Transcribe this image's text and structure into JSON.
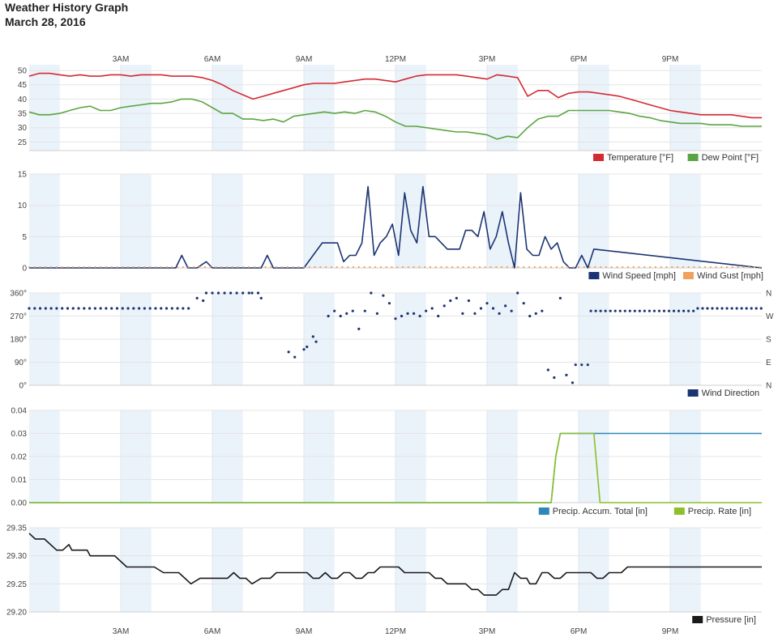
{
  "header": {
    "title": "Weather History Graph",
    "date": "March 28, 2016"
  },
  "colors": {
    "temperature": "#d42a33",
    "dew_point": "#5aa542",
    "wind_speed": "#1b3472",
    "wind_gust": "#f0a15e",
    "wind_direction": "#1b3472",
    "precip_total": "#2e87b9",
    "precip_rate": "#8cc12b",
    "pressure": "#1a1a1a",
    "band": "#eaf2fa"
  },
  "chart_data": [
    {
      "type": "line",
      "x_ticks": [
        "3AM",
        "6AM",
        "9AM",
        "12PM",
        "3PM",
        "6PM",
        "9PM"
      ],
      "x_tick_hours": [
        3,
        6,
        9,
        12,
        15,
        18,
        21
      ],
      "xlim_hours": [
        0,
        24
      ],
      "ylim": [
        22,
        52
      ],
      "y_ticks": [
        "50",
        "45",
        "40",
        "35",
        "30",
        "25"
      ],
      "y_tick_values": [
        50,
        45,
        40,
        35,
        30,
        25
      ],
      "legend": [
        "Temperature [°F]",
        "Dew Point [°F]"
      ],
      "series": [
        {
          "name": "Temperature [°F]",
          "x": [
            0,
            0.33,
            0.67,
            1,
            1.33,
            1.67,
            2,
            2.33,
            2.67,
            3,
            3.33,
            3.67,
            4,
            4.33,
            4.67,
            5,
            5.33,
            5.67,
            6,
            6.33,
            6.67,
            7,
            7.33,
            7.67,
            8,
            8.33,
            8.67,
            9,
            9.33,
            9.67,
            10,
            10.33,
            10.67,
            11,
            11.33,
            11.67,
            12,
            12.33,
            12.67,
            13,
            13.33,
            13.67,
            14,
            14.33,
            14.67,
            15,
            15.33,
            15.67,
            16,
            16.33,
            16.67,
            17,
            17.33,
            17.67,
            18,
            18.33,
            18.67,
            19,
            19.33,
            19.67,
            20,
            20.33,
            20.67,
            21,
            21.33,
            21.67,
            22,
            22.33,
            22.67,
            23,
            23.33,
            23.67,
            24
          ],
          "values": [
            48,
            49,
            49,
            48.5,
            48,
            48.5,
            48,
            48,
            48.5,
            48.5,
            48,
            48.5,
            48.5,
            48.5,
            48,
            48,
            48,
            47.5,
            46.5,
            45,
            43,
            41.5,
            40,
            41,
            42,
            43,
            44,
            45,
            45.5,
            45.5,
            45.5,
            46,
            46.5,
            47,
            47,
            46.5,
            46,
            47,
            48,
            48.5,
            48.5,
            48.5,
            48.5,
            48,
            47.5,
            47,
            48.5,
            48,
            47.5,
            41,
            43,
            43,
            40.5,
            42,
            42.5,
            42.5,
            42,
            41.5,
            41,
            40,
            39,
            38,
            37,
            36,
            35.5,
            35,
            34.5,
            34.5,
            34.5,
            34.5,
            34,
            33.5,
            33.5
          ]
        },
        {
          "name": "Dew Point [°F]",
          "x": [
            0,
            0.33,
            0.67,
            1,
            1.33,
            1.67,
            2,
            2.33,
            2.67,
            3,
            3.33,
            3.67,
            4,
            4.33,
            4.67,
            5,
            5.33,
            5.67,
            6,
            6.33,
            6.67,
            7,
            7.33,
            7.67,
            8,
            8.33,
            8.67,
            9,
            9.33,
            9.67,
            10,
            10.33,
            10.67,
            11,
            11.33,
            11.67,
            12,
            12.33,
            12.67,
            13,
            13.33,
            13.67,
            14,
            14.33,
            14.67,
            15,
            15.33,
            15.67,
            16,
            16.33,
            16.67,
            17,
            17.33,
            17.67,
            18,
            18.33,
            18.67,
            19,
            19.33,
            19.67,
            20,
            20.33,
            20.67,
            21,
            21.33,
            21.67,
            22,
            22.33,
            22.67,
            23,
            23.33,
            23.67,
            24
          ],
          "values": [
            35.5,
            34.5,
            34.5,
            35,
            36,
            37,
            37.5,
            36,
            36,
            37,
            37.5,
            38,
            38.5,
            38.5,
            39,
            40,
            40,
            39,
            37,
            35,
            35,
            33,
            33,
            32.5,
            33,
            32,
            34,
            34.5,
            35,
            35.5,
            35,
            35.5,
            35,
            36,
            35.5,
            34,
            32,
            30.5,
            30.5,
            30,
            29.5,
            29,
            28.5,
            28.5,
            28,
            27.5,
            26,
            27,
            26.5,
            30,
            33,
            34,
            34,
            36,
            36,
            36,
            36,
            36,
            35.5,
            35,
            34,
            33.5,
            32.5,
            32,
            31.5,
            31.5,
            31.5,
            31,
            31,
            31,
            30.5,
            30.5,
            30.5
          ]
        }
      ]
    },
    {
      "type": "line",
      "x_ticks": [],
      "xlim_hours": [
        0,
        24
      ],
      "ylim": [
        0,
        15
      ],
      "y_ticks": [
        "15",
        "10",
        "5",
        "0"
      ],
      "y_tick_values": [
        15,
        10,
        5,
        0
      ],
      "legend": [
        "Wind Speed [mph]",
        "Wind Gust [mph]"
      ],
      "series": [
        {
          "name": "Wind Speed [mph]",
          "x": [
            0,
            4.8,
            5,
            5.2,
            5.5,
            5.8,
            6,
            6.2,
            6.5,
            7.3,
            7.6,
            7.8,
            8,
            8.3,
            8.6,
            9,
            9.3,
            9.6,
            9.9,
            10.1,
            10.3,
            10.5,
            10.7,
            10.9,
            11.1,
            11.3,
            11.5,
            11.7,
            11.9,
            12.1,
            12.3,
            12.5,
            12.7,
            12.9,
            13.1,
            13.3,
            13.5,
            13.7,
            13.9,
            14.1,
            14.3,
            14.5,
            14.7,
            14.9,
            15.1,
            15.3,
            15.5,
            15.7,
            15.9,
            16.1,
            16.3,
            16.5,
            16.7,
            16.9,
            17.1,
            17.3,
            17.5,
            17.7,
            17.9,
            18.1,
            18.3,
            18.5,
            24
          ],
          "values": [
            0,
            0,
            2,
            0,
            0,
            1,
            0,
            0,
            0,
            0,
            0,
            2,
            0,
            0,
            0,
            0,
            2,
            4,
            4,
            4,
            1,
            2,
            2,
            4,
            13,
            2,
            4,
            5,
            7,
            2,
            12,
            6,
            4,
            13,
            5,
            5,
            4,
            3,
            3,
            3,
            6,
            6,
            5,
            9,
            3,
            5,
            9,
            4,
            0,
            12,
            3,
            2,
            2,
            5,
            3,
            4,
            1,
            0,
            0,
            2,
            0,
            3,
            0
          ]
        },
        {
          "name": "Wind Gust [mph]",
          "x": [],
          "values": []
        }
      ]
    },
    {
      "type": "scatter",
      "x_ticks": [],
      "xlim_hours": [
        0,
        24
      ],
      "ylim": [
        0,
        360
      ],
      "y_ticks": [
        "360°",
        "270°",
        "180°",
        "90°",
        "0°"
      ],
      "y_tick_values": [
        360,
        270,
        180,
        90,
        0
      ],
      "right_ticks": [
        "N",
        "W",
        "S",
        "E",
        "N"
      ],
      "legend": [
        "Wind Direction"
      ],
      "series": [
        {
          "name": "Wind Direction",
          "x": [
            5.5,
            5.7,
            5.8,
            6,
            6.2,
            6.4,
            6.6,
            6.8,
            7,
            7.2,
            7.3,
            7.5,
            7.6,
            8.5,
            8.7,
            9,
            9.1,
            9.3,
            9.4,
            9.8,
            10,
            10.2,
            10.4,
            10.6,
            10.8,
            11,
            11.2,
            11.4,
            11.6,
            11.8,
            12,
            12.2,
            12.4,
            12.6,
            12.8,
            13,
            13.2,
            13.4,
            13.6,
            13.8,
            14,
            14.2,
            14.4,
            14.6,
            14.8,
            15,
            15.2,
            15.4,
            15.6,
            15.8,
            16,
            16.2,
            16.4,
            16.6,
            16.8,
            17,
            17.2,
            17.4,
            17.6,
            17.8,
            17.9,
            18.1,
            18.3
          ],
          "values": [
            340,
            330,
            360,
            360,
            360,
            360,
            360,
            360,
            360,
            360,
            360,
            360,
            340,
            130,
            110,
            140,
            150,
            190,
            170,
            270,
            290,
            270,
            280,
            290,
            220,
            290,
            360,
            280,
            350,
            320,
            260,
            270,
            280,
            280,
            270,
            290,
            300,
            270,
            310,
            330,
            340,
            280,
            330,
            280,
            300,
            320,
            300,
            280,
            310,
            290,
            360,
            320,
            270,
            280,
            290,
            60,
            30,
            340,
            40,
            10,
            80,
            80,
            80
          ]
        }
      ]
    },
    {
      "type": "line",
      "x_ticks": [],
      "xlim_hours": [
        0,
        24
      ],
      "ylim": [
        0,
        0.04
      ],
      "y_ticks": [
        "0.04",
        "0.03",
        "0.02",
        "0.01",
        "0.00"
      ],
      "y_tick_values": [
        0.04,
        0.03,
        0.02,
        0.01,
        0
      ],
      "legend": [
        "Precip. Accum. Total [in]",
        "Precip. Rate [in]"
      ],
      "series": [
        {
          "name": "Precip. Accum. Total [in]",
          "x": [
            0,
            17.1,
            17.25,
            17.4,
            24
          ],
          "values": [
            0,
            0,
            0.02,
            0.03,
            0.03
          ]
        },
        {
          "name": "Precip. Rate [in]",
          "x": [
            0,
            17.1,
            17.25,
            17.4,
            18.5,
            18.7,
            24
          ],
          "values": [
            0,
            0,
            0.02,
            0.03,
            0.03,
            0,
            0
          ]
        }
      ]
    },
    {
      "type": "line",
      "x_ticks": [
        "3AM",
        "6AM",
        "9AM",
        "12PM",
        "3PM",
        "6PM",
        "9PM"
      ],
      "x_tick_hours": [
        3,
        6,
        9,
        12,
        15,
        18,
        21
      ],
      "xlim_hours": [
        0,
        24
      ],
      "ylim": [
        29.2,
        29.35
      ],
      "y_ticks": [
        "29.35",
        "29.30",
        "29.25",
        "29.20"
      ],
      "y_tick_values": [
        29.35,
        29.3,
        29.25,
        29.2
      ],
      "legend": [
        "Pressure [in]"
      ],
      "series": [
        {
          "name": "Pressure [in]",
          "x": [
            0,
            0.2,
            0.5,
            0.9,
            1.1,
            1.3,
            1.4,
            1.6,
            1.9,
            2.0,
            2.2,
            2.5,
            2.8,
            3,
            3.2,
            3.5,
            3.8,
            4.1,
            4.4,
            4.7,
            4.9,
            5.1,
            5.3,
            5.6,
            5.9,
            6.1,
            6.3,
            6.5,
            6.7,
            6.9,
            7.1,
            7.3,
            7.6,
            7.9,
            8.1,
            8.3,
            8.6,
            8.9,
            9.1,
            9.3,
            9.5,
            9.7,
            9.9,
            10.1,
            10.3,
            10.5,
            10.7,
            10.9,
            11.1,
            11.3,
            11.5,
            11.7,
            11.9,
            12.1,
            12.3,
            12.5,
            12.7,
            12.9,
            13.1,
            13.3,
            13.5,
            13.7,
            13.9,
            14.1,
            14.3,
            14.5,
            14.7,
            14.9,
            15.1,
            15.3,
            15.5,
            15.7,
            15.9,
            16.1,
            16.3,
            16.4,
            16.6,
            16.8,
            17,
            17.2,
            17.4,
            17.6,
            17.8,
            18,
            18.2,
            18.4,
            18.6,
            18.8,
            19,
            19.2,
            19.4,
            19.6,
            19.8,
            20,
            20.2,
            20.4,
            20.6,
            20.8,
            21,
            21.2,
            21.6,
            22,
            22.4,
            22.8,
            23.2,
            23.6,
            24
          ],
          "values": [
            29.34,
            29.33,
            29.33,
            29.31,
            29.31,
            29.32,
            29.31,
            29.31,
            29.31,
            29.3,
            29.3,
            29.3,
            29.3,
            29.29,
            29.28,
            29.28,
            29.28,
            29.28,
            29.27,
            29.27,
            29.27,
            29.26,
            29.25,
            29.26,
            29.26,
            29.26,
            29.26,
            29.26,
            29.27,
            29.26,
            29.26,
            29.25,
            29.26,
            29.26,
            29.27,
            29.27,
            29.27,
            29.27,
            29.27,
            29.26,
            29.26,
            29.27,
            29.26,
            29.26,
            29.27,
            29.27,
            29.26,
            29.26,
            29.27,
            29.27,
            29.28,
            29.28,
            29.28,
            29.28,
            29.27,
            29.27,
            29.27,
            29.27,
            29.27,
            29.26,
            29.26,
            29.25,
            29.25,
            29.25,
            29.25,
            29.24,
            29.24,
            29.23,
            29.23,
            29.23,
            29.24,
            29.24,
            29.27,
            29.26,
            29.26,
            29.25,
            29.25,
            29.27,
            29.27,
            29.26,
            29.26,
            29.27,
            29.27,
            29.27,
            29.27,
            29.27,
            29.26,
            29.26,
            29.27,
            29.27,
            29.27,
            29.28,
            29.28,
            29.28,
            29.28,
            29.28,
            29.28,
            29.28,
            29.28,
            29.28,
            29.28,
            29.28,
            29.28,
            29.28,
            29.28,
            29.28,
            29.28
          ]
        }
      ]
    }
  ]
}
